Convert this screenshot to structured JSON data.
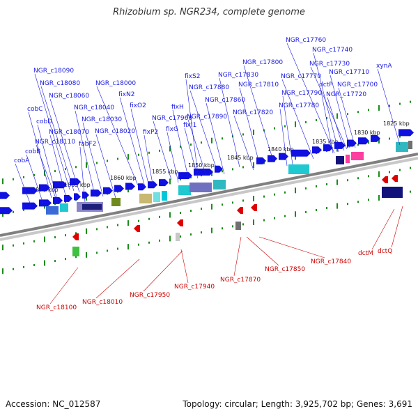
{
  "title": "Rhizobium sp. NGR234, complete genome",
  "footer": {
    "accession": "Accession: NC_012587",
    "topology": "Topology: circular; Length: 3,925,702 bp; Genes: 3,691"
  },
  "colors": {
    "forward_gene": "#1010e0",
    "reverse_gene": "#e00000",
    "top_label": "#1a1ae6",
    "bottom_label": "#cc0000",
    "tick": "#1a8c1a",
    "backbone": "#808080"
  },
  "scale_labels": [
    "1825 kbp",
    "1830 kbp",
    "1835 kbp",
    "1840 kbp",
    "1845 kbp",
    "1850 kbp",
    "1855 kbp",
    "1860 kbp",
    "1865 kbp",
    "1870 kbp"
  ],
  "top_labels": [
    "xynA",
    "NGR_c17760",
    "NGR_c17740",
    "NGR_c17730",
    "NGR_c17710",
    "NGR_c17700",
    "NGR_c17720",
    "dctP",
    "NGR_c17770",
    "NGR_c17800",
    "NGR_c17810",
    "NGR_c17790",
    "NGR_c17780",
    "NGR_c17830",
    "NGR_c17820",
    "NGR_c17880",
    "NGR_c17860",
    "fixS2",
    "NGR_c17890",
    "fixH",
    "fixI1",
    "NGR_c17960",
    "fixG",
    "NGR_c18000",
    "fixN2",
    "fixO2",
    "fixP2",
    "NGR_c18090",
    "NGR_c18080",
    "NGR_c18060",
    "NGR_c18040",
    "NGR_c18030",
    "NGR_c18020",
    "cobC",
    "cobD",
    "NGR_c18070",
    "NGR_c18110",
    "fabF2",
    "cobB",
    "cobA"
  ],
  "bottom_labels": [
    "dctQ",
    "dctM",
    "NGR_c17840",
    "NGR_c17850",
    "NGR_c17870",
    "NGR_c17940",
    "NGR_c17950",
    "NGR_c18010",
    "NGR_c18100"
  ]
}
